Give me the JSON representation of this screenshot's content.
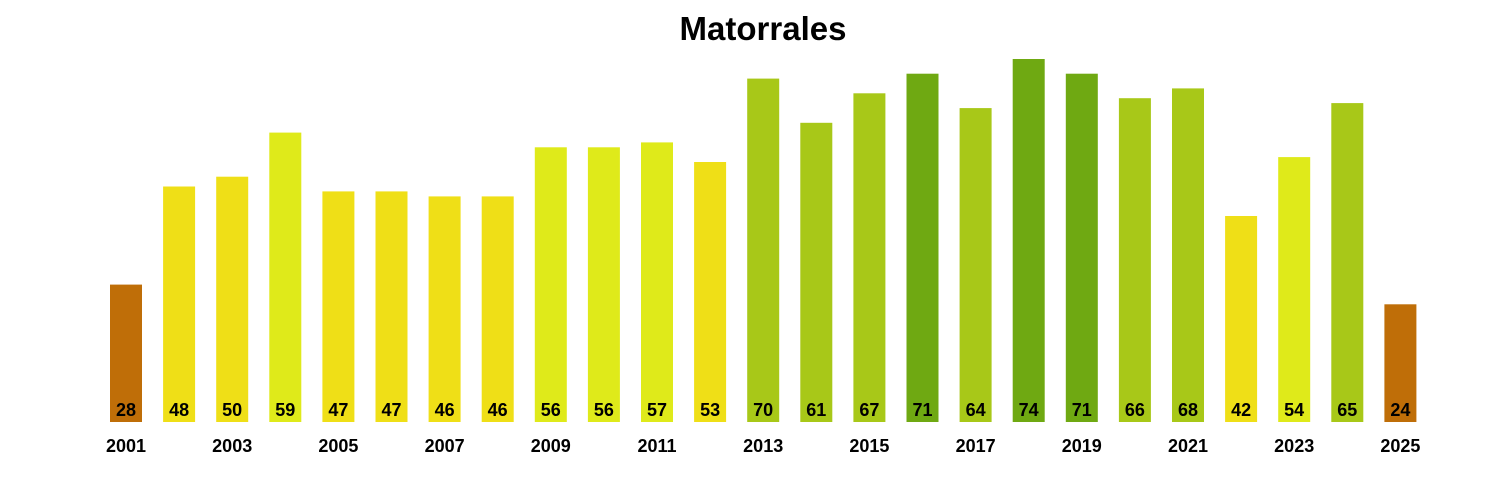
{
  "chart_data": {
    "type": "bar",
    "title": "Matorrales",
    "xlabel": "",
    "ylabel": "",
    "categories": [
      "2001",
      "2002",
      "2003",
      "2004",
      "2005",
      "2006",
      "2007",
      "2008",
      "2009",
      "2010",
      "2011",
      "2012",
      "2013",
      "2014",
      "2015",
      "2016",
      "2017",
      "2018",
      "2019",
      "2020",
      "2021",
      "2022",
      "2023",
      "2024",
      "2025"
    ],
    "values": [
      28,
      48,
      50,
      59,
      47,
      47,
      46,
      46,
      56,
      56,
      57,
      53,
      70,
      61,
      67,
      71,
      64,
      74,
      71,
      66,
      68,
      42,
      54,
      65,
      24
    ],
    "tick_labels": [
      "2001",
      "2003",
      "2005",
      "2007",
      "2009",
      "2011",
      "2013",
      "2015",
      "2017",
      "2019",
      "2021",
      "2023",
      "2025"
    ],
    "ylim": [
      0,
      74
    ],
    "grid": false,
    "data_labels": true,
    "bar_colors": [
      "#bf6e08",
      "#efdf17",
      "#efdf17",
      "#dfea1a",
      "#efdf17",
      "#efdf17",
      "#efdf17",
      "#efdf17",
      "#dfea1a",
      "#dfea1a",
      "#dfea1a",
      "#efdf17",
      "#a8c818",
      "#a8c818",
      "#a8c818",
      "#6fa912",
      "#a8c818",
      "#6fa912",
      "#6fa912",
      "#a8c818",
      "#a8c818",
      "#efdf17",
      "#dfea1a",
      "#a8c818",
      "#bf6e08"
    ]
  }
}
